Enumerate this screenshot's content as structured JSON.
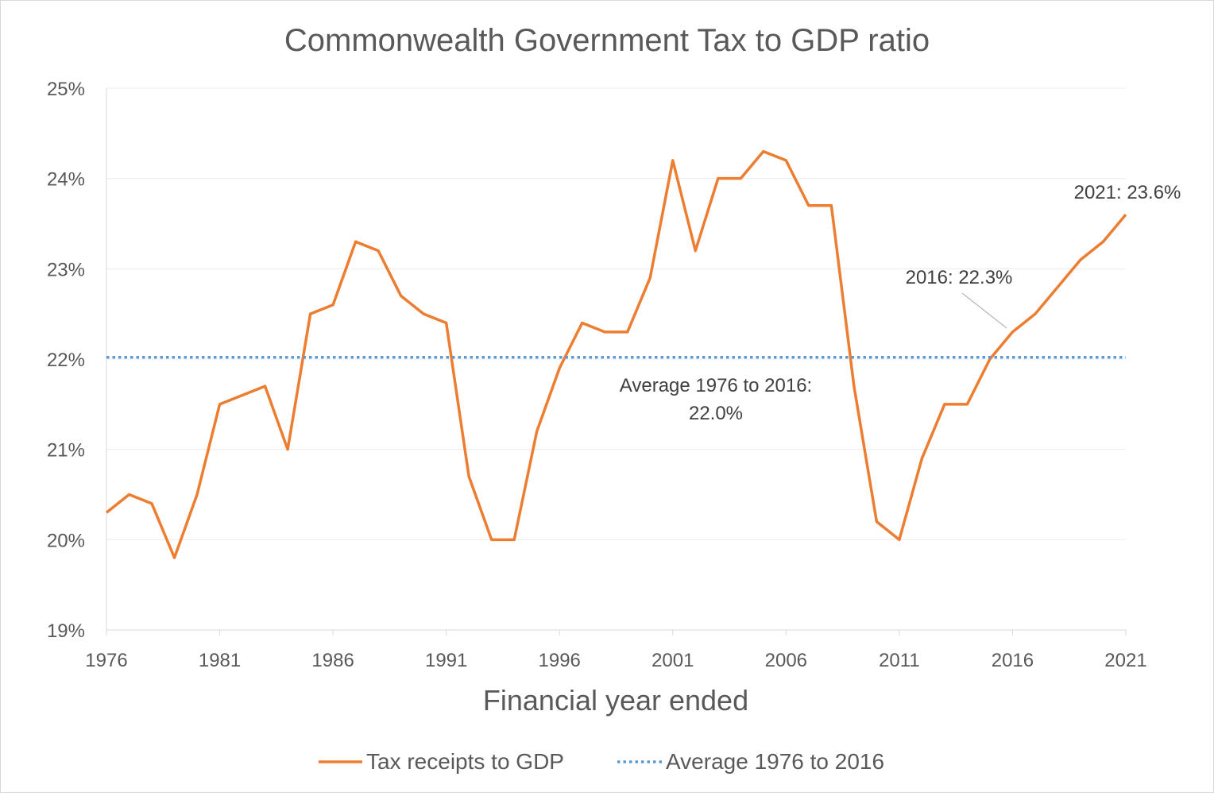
{
  "chart_data": {
    "type": "line",
    "title": "Commonwealth Government Tax to GDP ratio",
    "xlabel": "Financial year ended",
    "ylabel": "",
    "ylim": [
      19,
      25
    ],
    "xlim": [
      1976,
      2021
    ],
    "y_ticks": [
      "19%",
      "20%",
      "21%",
      "22%",
      "23%",
      "24%",
      "25%"
    ],
    "y_tick_values": [
      19,
      20,
      21,
      22,
      23,
      24,
      25
    ],
    "x_ticks": [
      "1976",
      "1981",
      "1986",
      "1991",
      "1996",
      "2001",
      "2006",
      "2011",
      "2016",
      "2021"
    ],
    "x_tick_values": [
      1976,
      1981,
      1986,
      1991,
      1996,
      2001,
      2006,
      2011,
      2016,
      2021
    ],
    "grid": "horizontal",
    "legend_position": "bottom",
    "series": [
      {
        "name": "Tax receipts to GDP",
        "color": "#ed7d31",
        "style": "solid",
        "x": [
          1976,
          1977,
          1978,
          1979,
          1980,
          1981,
          1982,
          1983,
          1984,
          1985,
          1986,
          1987,
          1988,
          1989,
          1990,
          1991,
          1992,
          1993,
          1994,
          1995,
          1996,
          1997,
          1998,
          1999,
          2000,
          2001,
          2002,
          2003,
          2004,
          2005,
          2006,
          2007,
          2008,
          2009,
          2010,
          2011,
          2012,
          2013,
          2014,
          2015,
          2016,
          2017,
          2018,
          2019,
          2020,
          2021
        ],
        "values": [
          20.3,
          20.5,
          20.4,
          19.8,
          20.5,
          21.5,
          21.6,
          21.7,
          21.0,
          22.5,
          22.6,
          23.3,
          23.2,
          22.7,
          22.5,
          22.4,
          20.7,
          20.0,
          20.0,
          21.2,
          21.9,
          22.4,
          22.3,
          22.3,
          22.9,
          24.2,
          23.2,
          24.0,
          24.0,
          24.3,
          24.2,
          23.7,
          23.7,
          21.7,
          20.2,
          20.0,
          20.9,
          21.5,
          21.5,
          22.0,
          22.3,
          22.5,
          22.8,
          23.1,
          23.3,
          23.6
        ]
      },
      {
        "name": "Average 1976 to 2016",
        "color": "#5b9bd5",
        "style": "dotted",
        "x": [
          1976,
          2021
        ],
        "values": [
          22.02,
          22.02
        ]
      }
    ],
    "annotations": {
      "average_line1": "Average 1976 to 2016:",
      "average_line2": "22.0%",
      "point_2016": "2016: 22.3%",
      "point_2021": "2021: 23.6%"
    }
  }
}
